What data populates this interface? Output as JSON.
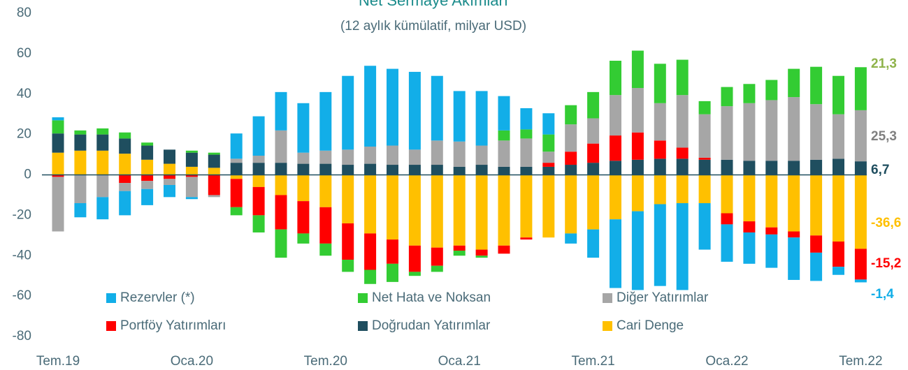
{
  "chart_data": {
    "type": "stacked_bar",
    "title": "Net Sermaye Akımları",
    "subtitle": "(12 aylık kümülatif, milyar USD)",
    "categories": [
      "Tem.19",
      null,
      null,
      null,
      null,
      null,
      "Oca.20",
      null,
      null,
      null,
      null,
      null,
      "Tem.20",
      null,
      null,
      null,
      null,
      null,
      "Oca.21",
      null,
      null,
      null,
      null,
      null,
      "Tem.21",
      null,
      null,
      null,
      null,
      null,
      "Oca.22",
      null,
      null,
      null,
      null,
      null,
      "Tem.22"
    ],
    "ylim": [
      -80,
      80
    ],
    "yticks": [
      -80,
      -60,
      -40,
      -20,
      0,
      20,
      40,
      60,
      80
    ],
    "series": [
      {
        "name": "Rezervler (*)",
        "color": "#12aee8",
        "end_label": "-1,4",
        "values": [
          1.5,
          -7,
          -11,
          -12,
          -8,
          -6,
          -1,
          0,
          12.5,
          19.5,
          19,
          24.5,
          29,
          36.5,
          40,
          38,
          38.5,
          32,
          25,
          27,
          17,
          10.5,
          10.5,
          -5,
          -14,
          -34,
          -39,
          -40.5,
          -43,
          -23,
          -18.5,
          -15.5,
          -16.5,
          -21,
          -14,
          -4,
          -1.4
        ]
      },
      {
        "name": "Net Hata ve Noksan",
        "color": "#33cc33",
        "end_label": "21,3",
        "values": [
          6.5,
          2,
          3,
          3,
          1.5,
          0,
          1,
          1,
          -4,
          -8.5,
          -14,
          -5,
          -6,
          -6,
          -7,
          -9,
          -2,
          -3,
          -2.5,
          -1,
          5,
          4.5,
          8.5,
          9.5,
          13,
          17,
          18.5,
          19.5,
          17.5,
          6.5,
          9.5,
          9.5,
          10,
          14,
          18.5,
          19,
          21.3
        ]
      },
      {
        "name": "Diğer Yatırımlar",
        "color": "#a6a6a6",
        "end_label": "25,3",
        "values": [
          -27,
          -14,
          -11,
          -4,
          -4,
          -3,
          -10,
          -1,
          2,
          3.5,
          16,
          5.5,
          6.5,
          7.5,
          8.5,
          9.5,
          7.5,
          12,
          12.5,
          9.5,
          13,
          14,
          5.5,
          13.5,
          12.5,
          20,
          22,
          18.5,
          26,
          21.5,
          26.5,
          28.5,
          30,
          31.5,
          27.5,
          22,
          25.3
        ]
      },
      {
        "name": "Portföy Yatırımları",
        "color": "#ff0000",
        "end_label": "-15,2",
        "values": [
          -1,
          0,
          0,
          -4,
          -3,
          -2,
          -1,
          -10,
          -14,
          -14,
          -17,
          -16,
          -18,
          -18,
          -18,
          -12,
          -13,
          -9,
          -2.5,
          -3,
          -4,
          -1,
          2,
          6.5,
          9.5,
          12.5,
          13.5,
          9,
          5.5,
          1,
          -5.5,
          -5.5,
          -3.5,
          -3,
          -8.5,
          -12.5,
          -15.2
        ]
      },
      {
        "name": "Doğrudan Yatırımlar",
        "color": "#1f4e5f",
        "end_label": "6,7",
        "values": [
          9.5,
          8,
          8,
          7.5,
          7,
          7,
          7,
          6.5,
          6,
          6,
          6,
          5.5,
          5.5,
          5,
          5.5,
          5,
          5,
          5,
          4,
          5,
          4,
          4,
          4,
          5,
          6,
          7,
          7.5,
          8,
          8,
          7.5,
          7.5,
          7,
          7,
          7,
          7.5,
          8,
          6.7
        ]
      },
      {
        "name": "Cari Denge",
        "color": "#ffc000",
        "end_label": "-36,6",
        "values": [
          11,
          12,
          12,
          10.5,
          7.5,
          5.5,
          4,
          3.5,
          -2,
          -6,
          -10,
          -13,
          -16,
          -24,
          -29,
          -32,
          -35,
          -36,
          -35,
          -37,
          -35,
          -31,
          -31,
          -29,
          -27,
          -22,
          -18,
          -14.5,
          -14,
          -14,
          -19,
          -23,
          -26,
          -28,
          -30,
          -33,
          -36.6
        ]
      }
    ]
  }
}
